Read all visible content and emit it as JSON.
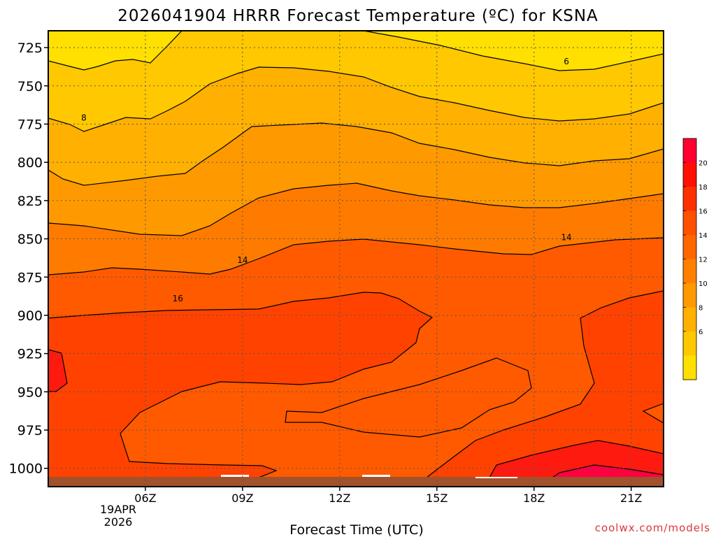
{
  "title": "2026041904 HRRR Forecast Temperature (ºC) for KSNA",
  "credit": "coolwx.com/models",
  "chart_data": {
    "type": "contour",
    "title": "2026041904 HRRR Forecast Temperature (ºC) for KSNA",
    "xlabel": "Forecast Time (UTC)",
    "ylabel": "",
    "x_ticks": [
      "06Z",
      "09Z",
      "12Z",
      "15Z",
      "18Z",
      "21Z"
    ],
    "x_tick_hours": [
      6,
      9,
      12,
      15,
      18,
      21
    ],
    "x_date_label": [
      "19APR",
      "2026"
    ],
    "xlim_hours": [
      3,
      22
    ],
    "y_ticks": [
      725,
      750,
      775,
      800,
      825,
      850,
      875,
      900,
      925,
      950,
      975,
      1000
    ],
    "ylim_hpa": [
      1012,
      714
    ],
    "grid": true,
    "contour_interval": 2,
    "contour_labels": [
      {
        "text": "6",
        "hour": 19,
        "hpa": 734
      },
      {
        "text": "8",
        "hour": 4.1,
        "hpa": 771
      },
      {
        "text": "14",
        "hour": 9,
        "hpa": 864
      },
      {
        "text": "14",
        "hour": 19,
        "hpa": 849
      },
      {
        "text": "16",
        "hour": 7,
        "hpa": 889
      }
    ],
    "colorbar": {
      "labels": [
        "20",
        "18",
        "16",
        "14",
        "12",
        "10",
        "8",
        "6"
      ],
      "colors": [
        "#ff0030",
        "#ff1000",
        "#ff3000",
        "#ff5000",
        "#ff6600",
        "#ff8000",
        "#ff9900",
        "#ffb000",
        "#ffc800",
        "#ffe000"
      ]
    },
    "fill_colors": {
      "t6": "#ffe000",
      "t8": "#ffc800",
      "t10": "#ffb000",
      "t12": "#ff9900",
      "t14": "#ff7b00",
      "t16": "#ff5a00",
      "t18": "#ff4200",
      "t20": "#ff1a10",
      "t22": "#ff0040",
      "ground": "#a0522d"
    }
  }
}
